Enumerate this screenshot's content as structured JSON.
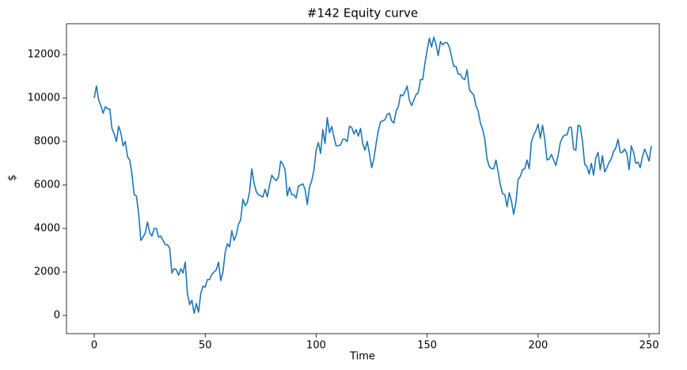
{
  "chart_data": {
    "type": "line",
    "title": "#142 Equity curve",
    "x_label": "Time",
    "y_label": "$",
    "color": "#1f77b4",
    "x": [
      0,
      1,
      2,
      3,
      4,
      5,
      6,
      7,
      8,
      9,
      10,
      11,
      12,
      13,
      14,
      15,
      16,
      17,
      18,
      19,
      20,
      21,
      22,
      23,
      24,
      25,
      26,
      27,
      28,
      29,
      30,
      31,
      32,
      33,
      34,
      35,
      36,
      37,
      38,
      39,
      40,
      41,
      42,
      43,
      44,
      45,
      46,
      47,
      48,
      49,
      50,
      51,
      52,
      53,
      54,
      55,
      56,
      57,
      58,
      59,
      60,
      61,
      62,
      63,
      64,
      65,
      66,
      67,
      68,
      69,
      70,
      71,
      72,
      73,
      74,
      75,
      76,
      77,
      78,
      79,
      80,
      81,
      82,
      83,
      84,
      85,
      86,
      87,
      88,
      89,
      90,
      91,
      92,
      93,
      94,
      95,
      96,
      97,
      98,
      99,
      100,
      101,
      102,
      103,
      104,
      105,
      106,
      107,
      108,
      109,
      110,
      111,
      112,
      113,
      114,
      115,
      116,
      117,
      118,
      119,
      120,
      121,
      122,
      123,
      124,
      125,
      126,
      127,
      128,
      129,
      130,
      131,
      132,
      133,
      134,
      135,
      136,
      137,
      138,
      139,
      140,
      141,
      142,
      143,
      144,
      145,
      146,
      147,
      148,
      149,
      150,
      151,
      152,
      153,
      154,
      155,
      156,
      157,
      158,
      159,
      160,
      161,
      162,
      163,
      164,
      165,
      166,
      167,
      168,
      169,
      170,
      171,
      172,
      173,
      174,
      175,
      176,
      177,
      178,
      179,
      180,
      181,
      182,
      183,
      184,
      185,
      186,
      187,
      188,
      189,
      190,
      191,
      192,
      193,
      194,
      195,
      196,
      197,
      198,
      199,
      200,
      201,
      202,
      203,
      204,
      205,
      206,
      207,
      208,
      209,
      210,
      211,
      212,
      213,
      214,
      215,
      216,
      217,
      218,
      219,
      220,
      221,
      222,
      223,
      224,
      225,
      226,
      227,
      228,
      229,
      230,
      231,
      232,
      233,
      234,
      235,
      236,
      237,
      238,
      239,
      240,
      241,
      242,
      243,
      244,
      245,
      246,
      247,
      248,
      249,
      250,
      251
    ],
    "values": [
      10000,
      10550,
      9900,
      9650,
      9300,
      9600,
      9500,
      9500,
      8600,
      8350,
      8000,
      8700,
      8400,
      7800,
      8000,
      7300,
      7150,
      6500,
      5550,
      5500,
      4700,
      3450,
      3600,
      3800,
      4300,
      3800,
      3650,
      4000,
      4000,
      3600,
      3650,
      3450,
      3250,
      3250,
      3100,
      1950,
      2150,
      2100,
      1850,
      2150,
      1950,
      2450,
      1000,
      500,
      700,
      100,
      550,
      150,
      1000,
      1350,
      1300,
      1650,
      1650,
      1900,
      2000,
      2100,
      2450,
      1600,
      2000,
      2900,
      3300,
      3150,
      3900,
      3450,
      3700,
      4200,
      4400,
      5350,
      5050,
      5200,
      5700,
      6750,
      6100,
      5700,
      5550,
      5500,
      5450,
      5800,
      5450,
      6000,
      6450,
      6300,
      6200,
      6350,
      7100,
      6950,
      6700,
      5500,
      5900,
      5550,
      5550,
      5400,
      5950,
      6000,
      6050,
      5800,
      5100,
      5900,
      6200,
      6700,
      7600,
      7950,
      7450,
      8550,
      7900,
      9100,
      8400,
      8700,
      8200,
      7800,
      7800,
      7850,
      8100,
      8100,
      8000,
      8700,
      8650,
      8350,
      8550,
      8250,
      8600,
      7900,
      7600,
      8000,
      7450,
      6800,
      7200,
      7900,
      8500,
      8900,
      8950,
      9000,
      9250,
      9300,
      8950,
      8850,
      9400,
      9600,
      10150,
      10100,
      10300,
      10550,
      9900,
      9650,
      9900,
      10150,
      10250,
      10850,
      10850,
      11600,
      12200,
      12750,
      12350,
      12800,
      12450,
      11950,
      12600,
      12450,
      12550,
      12550,
      12350,
      11900,
      11450,
      11450,
      11100,
      11100,
      10900,
      10850,
      11300,
      10400,
      10250,
      10150,
      9650,
      9400,
      8850,
      8550,
      8100,
      7200,
      6850,
      6750,
      6750,
      7150,
      6600,
      6000,
      5600,
      5550,
      5000,
      5650,
      5250,
      4650,
      5200,
      6250,
      6400,
      6700,
      6750,
      7150,
      6750,
      8000,
      8300,
      8500,
      8800,
      8150,
      8750,
      8100,
      7150,
      7200,
      7400,
      7150,
      6900,
      7350,
      7950,
      8200,
      8300,
      8300,
      8650,
      8650,
      7650,
      7600,
      8750,
      8700,
      8000,
      6950,
      6850,
      6500,
      7000,
      6450,
      7250,
      7500,
      6700,
      7350,
      6600,
      6800,
      7050,
      7200,
      7550,
      7700,
      8100,
      7500,
      7500,
      7650,
      7450,
      6700,
      7800,
      7500,
      7000,
      7050,
      6800,
      7300,
      7650,
      7400,
      7100,
      7800
    ],
    "xlim": [
      -12.5,
      254.6
    ],
    "ylim": [
      -836,
      13418
    ],
    "xticks": [
      0,
      50,
      100,
      150,
      200,
      250
    ],
    "yticks": [
      0,
      2000,
      4000,
      6000,
      8000,
      10000,
      12000
    ]
  }
}
